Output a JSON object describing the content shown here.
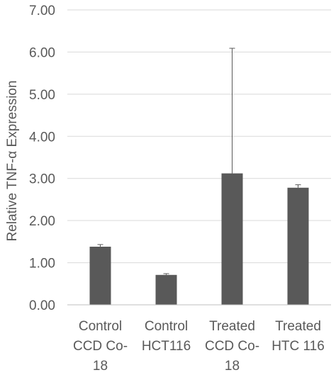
{
  "chart_data": {
    "type": "bar",
    "title": "",
    "xlabel": "",
    "ylabel": "Relative TNF-α Expression",
    "ylim": [
      0,
      7
    ],
    "yticks": [
      "0.00",
      "1.00",
      "2.00",
      "3.00",
      "4.00",
      "5.00",
      "6.00",
      "7.00"
    ],
    "categories": [
      [
        "Control",
        "CCD Co-",
        "18"
      ],
      [
        "Control",
        "HCT116"
      ],
      [
        "Treated",
        "CCD Co-",
        "18"
      ],
      [
        "Treated",
        "HTC 116"
      ]
    ],
    "values": [
      1.38,
      0.71,
      3.12,
      2.78
    ],
    "error": [
      0.05,
      0.03,
      2.97,
      0.07
    ],
    "grid": true,
    "colors": {
      "bar": "#595959",
      "grid": "#d9d9d9",
      "axis": "#bfbfbf",
      "error_bar": "#595959"
    }
  }
}
